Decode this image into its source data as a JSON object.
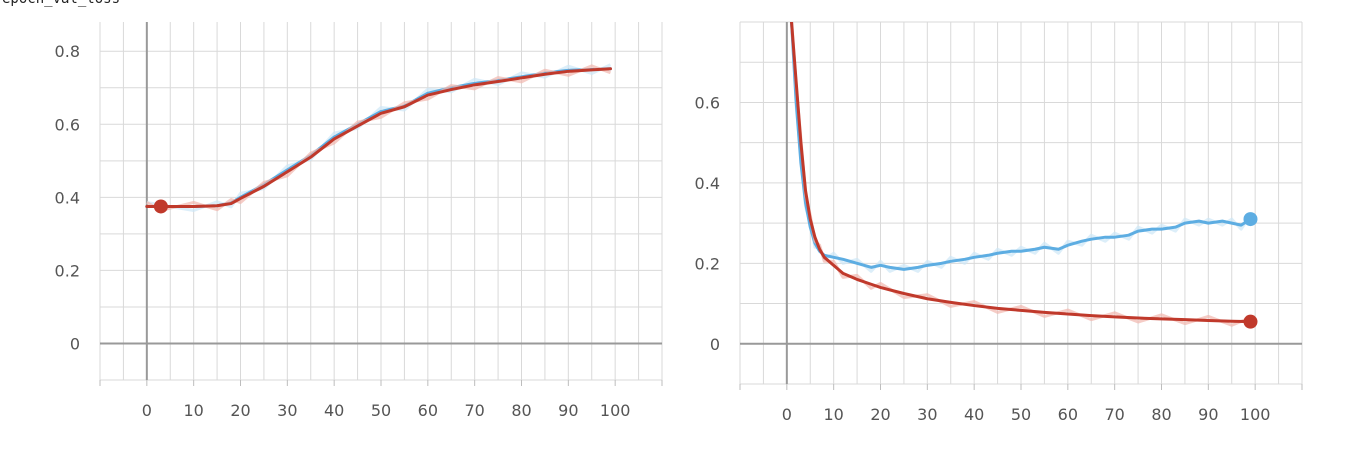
{
  "header": {
    "label": "epoch_val_loss"
  },
  "colors": {
    "series_train": "#c0392b",
    "series_val": "#5dade2",
    "series_train_raw": "#f1b7ae",
    "series_val_raw": "#cde7f6"
  },
  "chart_data": [
    {
      "type": "line",
      "title": "",
      "xlabel": "",
      "ylabel": "",
      "xlim": [
        -10,
        110
      ],
      "ylim": [
        -0.1,
        0.88
      ],
      "xticks": [
        0,
        10,
        20,
        30,
        40,
        50,
        60,
        70,
        80,
        90,
        100
      ],
      "xtick_labels": [
        "0",
        "10",
        "20",
        "30",
        "40",
        "50",
        "60",
        "70",
        "80",
        "90",
        "100"
      ],
      "yticks": [
        0,
        0.2,
        0.4,
        0.6,
        0.8
      ],
      "ytick_labels": [
        "0",
        "0.2",
        "0.4",
        "0.6",
        "0.8"
      ],
      "grid": true,
      "series": [
        {
          "color": "#5dade2",
          "x": [
            0,
            10,
            15,
            18,
            20,
            25,
            30,
            35,
            40,
            45,
            50,
            55,
            60,
            65,
            70,
            75,
            80,
            85,
            90,
            95,
            99
          ],
          "y": [
            0.375,
            0.375,
            0.377,
            0.385,
            0.4,
            0.435,
            0.475,
            0.515,
            0.565,
            0.6,
            0.635,
            0.65,
            0.685,
            0.7,
            0.712,
            0.72,
            0.73,
            0.74,
            0.748,
            0.75,
            0.752
          ]
        },
        {
          "color": "#c0392b",
          "marker_at": 3,
          "x": [
            0,
            3,
            10,
            15,
            18,
            20,
            25,
            30,
            35,
            40,
            45,
            50,
            55,
            60,
            65,
            70,
            75,
            80,
            85,
            90,
            95,
            99
          ],
          "y": [
            0.375,
            0.375,
            0.375,
            0.377,
            0.383,
            0.397,
            0.43,
            0.47,
            0.51,
            0.56,
            0.595,
            0.63,
            0.648,
            0.68,
            0.695,
            0.708,
            0.717,
            0.727,
            0.737,
            0.745,
            0.749,
            0.752
          ]
        }
      ]
    },
    {
      "type": "line",
      "title": "",
      "xlabel": "",
      "ylabel": "",
      "xlim": [
        -10,
        110
      ],
      "ylim": [
        -0.1,
        0.8
      ],
      "xticks": [
        0,
        10,
        20,
        30,
        40,
        50,
        60,
        70,
        80,
        90,
        100
      ],
      "xtick_labels": [
        "0",
        "10",
        "20",
        "30",
        "40",
        "50",
        "60",
        "70",
        "80",
        "90",
        "100"
      ],
      "yticks": [
        0,
        0.2,
        0.4,
        0.6
      ],
      "ytick_labels": [
        "0",
        "0.2",
        "0.4",
        "0.6"
      ],
      "grid": true,
      "series": [
        {
          "color": "#5dade2",
          "marker_at": 99,
          "x": [
            1,
            2,
            3,
            4,
            5,
            6,
            7,
            8,
            10,
            12,
            15,
            18,
            20,
            22,
            25,
            28,
            30,
            33,
            35,
            38,
            40,
            43,
            45,
            48,
            50,
            53,
            55,
            58,
            60,
            63,
            65,
            68,
            70,
            73,
            75,
            78,
            80,
            83,
            85,
            88,
            90,
            93,
            95,
            97,
            99
          ],
          "y": [
            0.8,
            0.6,
            0.45,
            0.35,
            0.29,
            0.25,
            0.23,
            0.22,
            0.215,
            0.21,
            0.2,
            0.19,
            0.195,
            0.19,
            0.185,
            0.19,
            0.195,
            0.2,
            0.205,
            0.21,
            0.215,
            0.22,
            0.225,
            0.23,
            0.23,
            0.235,
            0.24,
            0.235,
            0.245,
            0.255,
            0.26,
            0.265,
            0.265,
            0.27,
            0.28,
            0.285,
            0.285,
            0.29,
            0.3,
            0.305,
            0.3,
            0.305,
            0.3,
            0.295,
            0.31
          ]
        },
        {
          "color": "#c0392b",
          "marker_at": 99,
          "x": [
            1,
            2,
            3,
            4,
            5,
            6,
            7,
            8,
            10,
            12,
            15,
            18,
            20,
            25,
            30,
            35,
            40,
            45,
            50,
            55,
            60,
            65,
            70,
            75,
            80,
            85,
            90,
            95,
            99
          ],
          "y": [
            0.8,
            0.65,
            0.5,
            0.38,
            0.31,
            0.265,
            0.235,
            0.215,
            0.195,
            0.175,
            0.16,
            0.148,
            0.14,
            0.125,
            0.112,
            0.103,
            0.095,
            0.088,
            0.083,
            0.078,
            0.074,
            0.07,
            0.067,
            0.064,
            0.062,
            0.06,
            0.058,
            0.056,
            0.055
          ]
        }
      ]
    }
  ]
}
